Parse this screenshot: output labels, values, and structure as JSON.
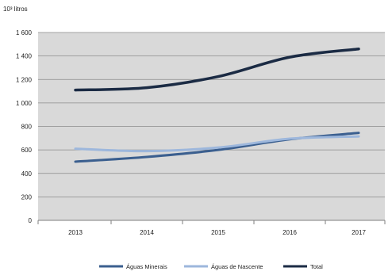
{
  "chart_data": {
    "type": "line",
    "unit_label": "10³ litros",
    "categories": [
      "2013",
      "2014",
      "2015",
      "2016",
      "2017"
    ],
    "y_ticks": [
      0,
      200,
      400,
      600,
      800,
      1000,
      1200,
      1400,
      1600
    ],
    "y_tick_labels": [
      "0",
      "200",
      "400",
      "600",
      "800",
      "1 000",
      "1 200",
      "1 400",
      "1 600"
    ],
    "ylim": [
      0,
      1600
    ],
    "grid": true,
    "legend_position": "bottom",
    "series": [
      {
        "name": "Águas Minerais",
        "color": "#3b5f8f",
        "values": [
          500,
          540,
          600,
          690,
          745
        ]
      },
      {
        "name": "Águas de Nascente",
        "color": "#9db7dc",
        "values": [
          610,
          590,
          620,
          695,
          715
        ]
      },
      {
        "name": "Total",
        "color": "#1b2b44",
        "values": [
          1110,
          1130,
          1225,
          1390,
          1460
        ]
      }
    ]
  }
}
